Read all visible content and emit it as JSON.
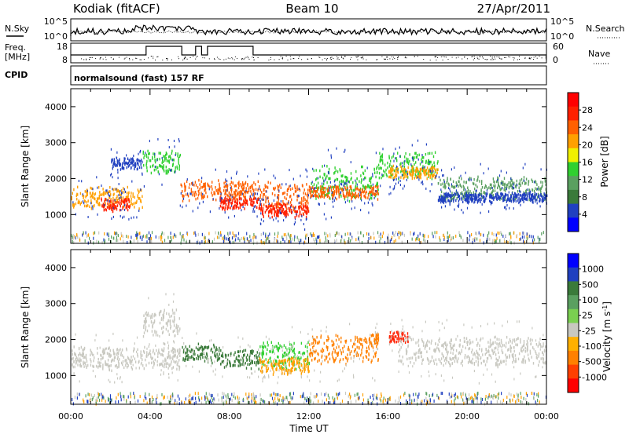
{
  "header": {
    "station": "Kodiak (fitACF)",
    "beam": "Beam 10",
    "date": "27/Apr/2011"
  },
  "summary_panel": {
    "left_label": "N.Sky",
    "right_label": "N.Search",
    "left_ticks": [
      "10^5",
      "10^0"
    ],
    "right_ticks": [
      "10^5",
      "10^0"
    ]
  },
  "freq_panel": {
    "left_label_line1": "Freq.",
    "left_label_line2": "[MHz]",
    "right_label": "Nave",
    "left_ticks": [
      "18",
      "8"
    ],
    "right_ticks": [
      "60",
      "0"
    ],
    "cpid_label": "CPID",
    "cpid_text": "normalsound (fast) 157 RF"
  },
  "colors": {
    "power_scale": [
      "#0000ff",
      "#2040c0",
      "#3a7a3a",
      "#5aa060",
      "#30d030",
      "#f0f000",
      "#ffa000",
      "#ff6000",
      "#ff2000",
      "#ff0000"
    ],
    "velocity_scale": [
      "#0000ff",
      "#2040c0",
      "#3a7a3a",
      "#5aa060",
      "#7ad050",
      "#c8c8c0",
      "#ffb000",
      "#ff8000",
      "#ff4000",
      "#ff0000"
    ]
  },
  "chart_data": [
    {
      "type": "heatmap",
      "name": "power",
      "ylabel": "Slant Range [km]",
      "yticks": [
        "1000",
        "2000",
        "3000",
        "4000"
      ],
      "colorbar_label": "Power [dB]",
      "colorbar_ticks": [
        "4",
        "8",
        "12",
        "16",
        "20",
        "24",
        "28"
      ],
      "x_ticks": [
        "00:00",
        "04:00",
        "08:00",
        "12:00",
        "16:00",
        "20:00",
        "00:00"
      ],
      "xlim_hours": [
        0,
        24
      ],
      "ylim_km": [
        200,
        4500
      ],
      "bands": [
        {
          "start": 0.0,
          "end": 3.6,
          "center": 1500,
          "width": 320,
          "color": "#ffa000"
        },
        {
          "start": 1.5,
          "end": 3.0,
          "center": 1300,
          "width": 200,
          "color": "#ff2000"
        },
        {
          "start": 2.0,
          "end": 3.6,
          "center": 2450,
          "width": 200,
          "color": "#2040c0"
        },
        {
          "start": 3.6,
          "end": 5.5,
          "center": 2500,
          "width": 350,
          "color": "#30d030"
        },
        {
          "start": 5.5,
          "end": 9.5,
          "center": 1700,
          "width": 300,
          "color": "#ff6000"
        },
        {
          "start": 7.5,
          "end": 9.5,
          "center": 1350,
          "width": 200,
          "color": "#ff2000"
        },
        {
          "start": 9.5,
          "end": 12.0,
          "center": 1500,
          "width": 450,
          "color": "#ff6000"
        },
        {
          "start": 9.5,
          "end": 12.0,
          "center": 1150,
          "width": 200,
          "color": "#ff2000"
        },
        {
          "start": 12.0,
          "end": 15.5,
          "center": 1900,
          "width": 500,
          "color": "#30d030"
        },
        {
          "start": 12.0,
          "end": 15.5,
          "center": 1650,
          "width": 200,
          "color": "#ff6000"
        },
        {
          "start": 15.5,
          "end": 18.5,
          "center": 2400,
          "width": 400,
          "color": "#30d030"
        },
        {
          "start": 16.0,
          "end": 18.5,
          "center": 2200,
          "width": 200,
          "color": "#ffa000"
        },
        {
          "start": 18.5,
          "end": 24.0,
          "center": 1750,
          "width": 350,
          "color": "#5aa060"
        },
        {
          "start": 18.5,
          "end": 24.0,
          "center": 1500,
          "width": 150,
          "color": "#2040c0"
        }
      ]
    },
    {
      "type": "heatmap",
      "name": "velocity",
      "ylabel": "Slant Range [km]",
      "yticks": [
        "1000",
        "2000",
        "3000",
        "4000"
      ],
      "colorbar_label": "Velocity [m s",
      "colorbar_sup": "-1",
      "colorbar_label_end": "]",
      "colorbar_ticks": [
        "1000",
        "500",
        "100",
        "25",
        "-25",
        "-100",
        "-500",
        "-1000"
      ],
      "x_ticks": [
        "00:00",
        "04:00",
        "08:00",
        "12:00",
        "16:00",
        "20:00",
        "00:00"
      ],
      "xlabel": "Time UT",
      "xlim_hours": [
        0,
        24
      ],
      "ylim_km": [
        200,
        4500
      ],
      "bands": [
        {
          "start": 0.0,
          "end": 5.5,
          "center": 1500,
          "width": 350,
          "color": "#c8c8c0"
        },
        {
          "start": 3.6,
          "end": 5.5,
          "center": 2500,
          "width": 400,
          "color": "#c8c8c0"
        },
        {
          "start": 5.5,
          "end": 7.5,
          "center": 1650,
          "width": 300,
          "color": "#3a7a3a"
        },
        {
          "start": 7.5,
          "end": 9.5,
          "center": 1500,
          "width": 300,
          "color": "#3a7a3a"
        },
        {
          "start": 9.5,
          "end": 12.0,
          "center": 1600,
          "width": 400,
          "color": "#30d030"
        },
        {
          "start": 9.5,
          "end": 12.0,
          "center": 1300,
          "width": 250,
          "color": "#ffa000"
        },
        {
          "start": 12.0,
          "end": 15.5,
          "center": 1750,
          "width": 450,
          "color": "#ff8000"
        },
        {
          "start": 15.0,
          "end": 15.5,
          "center": 2050,
          "width": 200,
          "color": "#ff8000"
        },
        {
          "start": 16.0,
          "end": 17.0,
          "center": 2100,
          "width": 200,
          "color": "#ff2000"
        },
        {
          "start": 16.5,
          "end": 24.0,
          "center": 1700,
          "width": 450,
          "color": "#c8c8c0"
        }
      ]
    }
  ]
}
